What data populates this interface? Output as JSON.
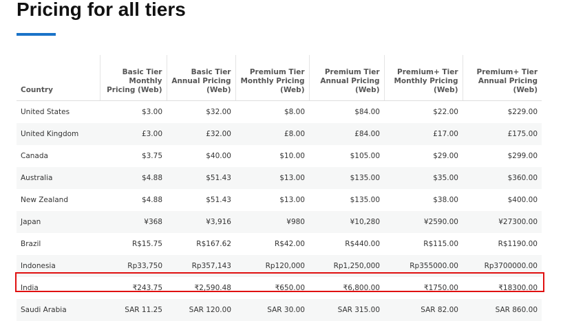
{
  "header": {
    "title": "Pricing for all tiers"
  },
  "table": {
    "columns": [
      "Country",
      "Basic Tier Monthly Pricing (Web)",
      "Basic Tier Annual Pricing (Web)",
      "Premium Tier Monthly Pricing (Web)",
      "Premium Tier Annual Pricing (Web)",
      "Premium+ Tier Monthly Pricing (Web)",
      "Premium+ Tier Annual Pricing (Web)"
    ],
    "rows": [
      [
        "United States",
        "$3.00",
        "$32.00",
        "$8.00",
        "$84.00",
        "$22.00",
        "$229.00"
      ],
      [
        "United Kingdom",
        "£3.00",
        "£32.00",
        "£8.00",
        "£84.00",
        "£17.00",
        "£175.00"
      ],
      [
        "Canada",
        "$3.75",
        "$40.00",
        "$10.00",
        "$105.00",
        "$29.00",
        "$299.00"
      ],
      [
        "Australia",
        "$4.88",
        "$51.43",
        "$13.00",
        "$135.00",
        "$35.00",
        "$360.00"
      ],
      [
        "New Zealand",
        "$4.88",
        "$51.43",
        "$13.00",
        "$135.00",
        "$38.00",
        "$400.00"
      ],
      [
        "Japan",
        "¥368",
        "¥3,916",
        "¥980",
        "¥10,280",
        "¥2590.00",
        "¥27300.00"
      ],
      [
        "Brazil",
        "R$15.75",
        "R$167.62",
        "R$42.00",
        "R$440.00",
        "R$115.00",
        "R$1190.00"
      ],
      [
        "Indonesia",
        "Rp33,750",
        "Rp357,143",
        "Rp120,000",
        "Rp1,250,000",
        "Rp355000.00",
        "Rp3700000.00"
      ],
      [
        "India",
        "₹243.75",
        "₹2,590.48",
        "₹650.00",
        "₹6,800.00",
        "₹1750.00",
        "₹18300.00"
      ],
      [
        "Saudi Arabia",
        "SAR 11.25",
        "SAR 120.00",
        "SAR 30.00",
        "SAR 315.00",
        "SAR 82.00",
        "SAR 860.00"
      ]
    ]
  }
}
